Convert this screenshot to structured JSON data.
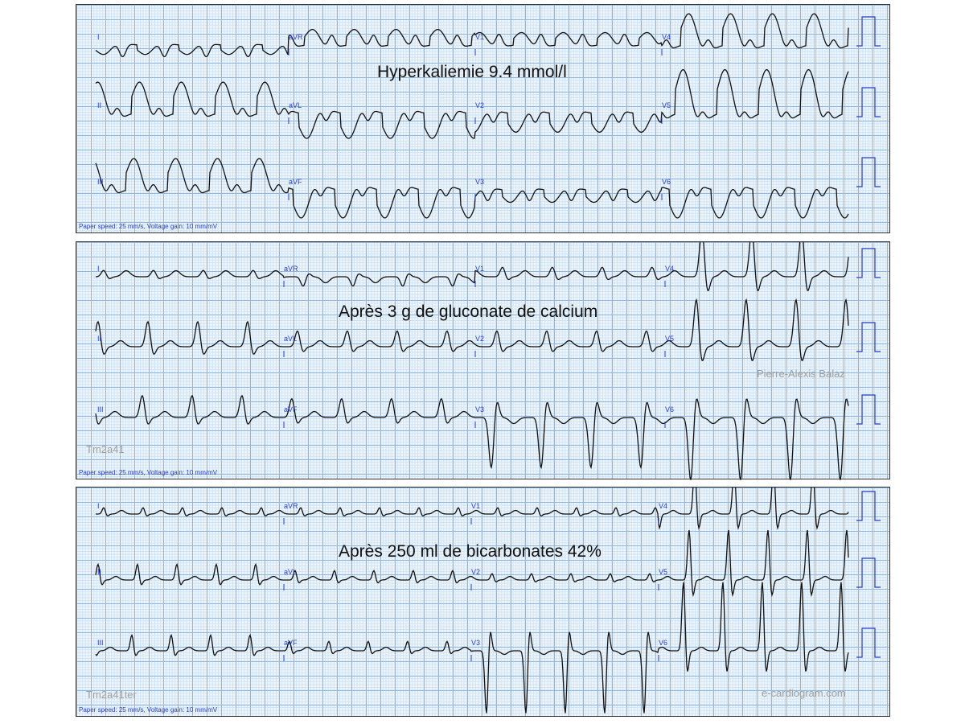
{
  "panels": [
    {
      "title": "Hyperkaliemie 9.4 mmol/l",
      "footer": "Paper speed: 25 mm/s, Voltage gain: 10 mm/mV",
      "leads": [
        [
          "I",
          "aVR",
          "V1",
          "V4"
        ],
        [
          "II",
          "aVL",
          "V2",
          "V5"
        ],
        [
          "III",
          "aVF",
          "V3",
          "V6"
        ]
      ],
      "watermarks": []
    },
    {
      "title": "Après 3 g de gluconate de calcium",
      "footer": "Paper speed: 25 mm/s, Voltage gain: 10 mm/mV",
      "leads": [
        [
          "I",
          "aVR",
          "V1",
          "V4"
        ],
        [
          "II",
          "aVL",
          "V2",
          "V5"
        ],
        [
          "III",
          "aVF",
          "V3",
          "V6"
        ]
      ],
      "watermarks": [
        "Tm2a41",
        "Pierre-Alexis Balaz"
      ]
    },
    {
      "title": "Après 250 ml de bicarbonates 42%",
      "footer": "Paper speed: 25 mm/s, Voltage gain: 10 mm/mV",
      "leads": [
        [
          "I",
          "aVR",
          "V1",
          "V4"
        ],
        [
          "II",
          "aVL",
          "V2",
          "V5"
        ],
        [
          "III",
          "aVF",
          "V3",
          "V6"
        ]
      ],
      "watermarks": [
        "Tm2a41ter",
        "e-cardiogram.com"
      ]
    }
  ],
  "colors": {
    "trace": "#111111",
    "lead_label": "#2a3fc0",
    "grid_major": "#8fb6dc",
    "grid_minor": "#cfe2f3"
  }
}
